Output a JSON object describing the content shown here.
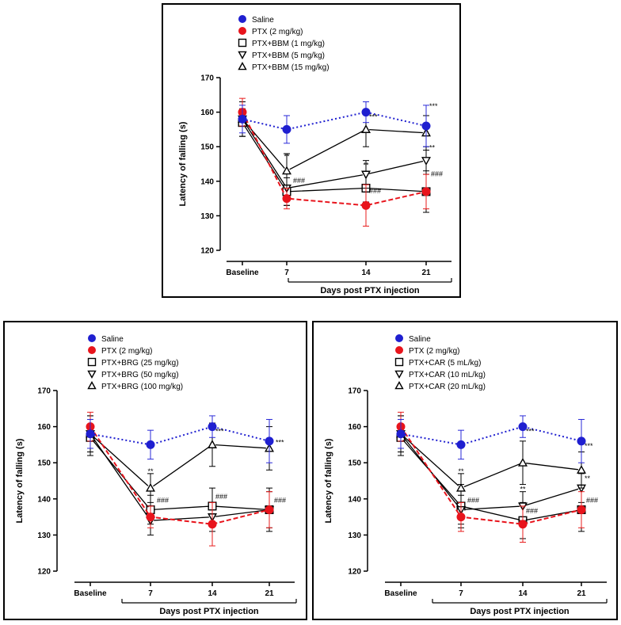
{
  "colors": {
    "saline": "#1f1fd0",
    "ptx": "#e8141c",
    "drug": "#000000",
    "error_saline": "#2a2ad8",
    "error_ptx": "#e81c1c"
  },
  "chart_data": [
    {
      "type": "line",
      "categories": [
        "Baseline",
        "7",
        "14",
        "21"
      ],
      "ylabel": "Latency of falling (s)",
      "xgroup_label": "Days post PTX injection",
      "ylim": [
        120,
        170
      ],
      "yticks": [
        120,
        130,
        140,
        150,
        160,
        170
      ],
      "series": [
        {
          "name": "Saline",
          "style": "saline",
          "values": [
            158,
            155,
            160,
            156
          ],
          "errors": [
            4,
            4,
            3,
            6
          ]
        },
        {
          "name": "PTX (2 mg/kg)",
          "style": "ptx",
          "values": [
            160,
            135,
            133,
            137
          ],
          "errors": [
            4,
            3,
            6,
            5
          ]
        },
        {
          "name": "PTX+BBM (1 mg/kg)",
          "style": "square",
          "values": [
            157,
            137,
            138,
            137
          ],
          "errors": [
            4,
            4,
            4,
            6
          ]
        },
        {
          "name": "PTX+BBM (5 mg/kg)",
          "style": "tri-down",
          "values": [
            158,
            138,
            142,
            146
          ],
          "errors": [
            5,
            5,
            4,
            4
          ]
        },
        {
          "name": "PTX+BBM (15 mg/kg)",
          "style": "tri-up",
          "values": [
            158,
            143,
            155,
            154
          ],
          "errors": [
            5,
            5,
            5,
            5
          ]
        }
      ],
      "annotations": [
        {
          "category": "7",
          "y": 146.5,
          "text": "**"
        },
        {
          "category": "7",
          "y": 139.5,
          "text": "###",
          "dx": 8
        },
        {
          "category": "14",
          "y": 158,
          "text": "***",
          "dx": 4
        },
        {
          "category": "14",
          "y": 144,
          "text": "**"
        },
        {
          "category": "14",
          "y": 136.5,
          "text": "###",
          "dx": 4
        },
        {
          "category": "21",
          "y": 161,
          "text": "***",
          "dx": 4
        },
        {
          "category": "21",
          "y": 149,
          "text": "**",
          "dx": 4
        },
        {
          "category": "21",
          "y": 141.5,
          "text": "###",
          "dx": 6
        }
      ]
    },
    {
      "type": "line",
      "categories": [
        "Baseline",
        "7",
        "14",
        "21"
      ],
      "ylabel": "Latency of falling (s)",
      "xgroup_label": "Days post PTX injection",
      "ylim": [
        120,
        170
      ],
      "yticks": [
        120,
        130,
        140,
        150,
        160,
        170
      ],
      "series": [
        {
          "name": "Saline",
          "style": "saline",
          "values": [
            158,
            155,
            160,
            156
          ],
          "errors": [
            4,
            4,
            3,
            6
          ]
        },
        {
          "name": "PTX (2 mg/kg)",
          "style": "ptx",
          "values": [
            160,
            135,
            133,
            137
          ],
          "errors": [
            4,
            3,
            6,
            5
          ]
        },
        {
          "name": "PTX+BRG (25 mg/kg)",
          "style": "square",
          "values": [
            157,
            137,
            138,
            137
          ],
          "errors": [
            5,
            4,
            5,
            6
          ]
        },
        {
          "name": "PTX+BRG (50 mg/kg)",
          "style": "tri-down",
          "values": [
            158,
            134,
            135,
            137
          ],
          "errors": [
            5,
            4,
            4,
            5
          ]
        },
        {
          "name": "PTX+BRG (100 mg/kg)",
          "style": "tri-up",
          "values": [
            158,
            143,
            155,
            154
          ],
          "errors": [
            5,
            4,
            6,
            6
          ]
        }
      ],
      "annotations": [
        {
          "category": "7",
          "y": 147,
          "text": "**"
        },
        {
          "category": "7",
          "y": 139,
          "text": "###",
          "dx": 8
        },
        {
          "category": "14",
          "y": 158,
          "text": "***",
          "dx": 4
        },
        {
          "category": "14",
          "y": 140,
          "text": "###",
          "dx": 4
        },
        {
          "category": "21",
          "y": 155,
          "text": "***",
          "dx": 8
        },
        {
          "category": "21",
          "y": 139,
          "text": "###",
          "dx": 6
        }
      ]
    },
    {
      "type": "line",
      "categories": [
        "Baseline",
        "7",
        "14",
        "21"
      ],
      "ylabel": "Latency of falling (s)",
      "xgroup_label": "Days post PTX injection",
      "ylim": [
        120,
        170
      ],
      "yticks": [
        120,
        130,
        140,
        150,
        160,
        170
      ],
      "series": [
        {
          "name": "Saline",
          "style": "saline",
          "values": [
            158,
            155,
            160,
            156
          ],
          "errors": [
            4,
            4,
            3,
            6
          ]
        },
        {
          "name": "PTX (2 mg/kg)",
          "style": "ptx",
          "values": [
            160,
            135,
            133,
            137
          ],
          "errors": [
            4,
            4,
            5,
            5
          ]
        },
        {
          "name": "PTX+CAR (5 mL/kg)",
          "style": "square",
          "values": [
            157,
            138,
            134,
            137
          ],
          "errors": [
            5,
            6,
            5,
            6
          ]
        },
        {
          "name": "PTX+CAR (10 mL/kg)",
          "style": "tri-down",
          "values": [
            158,
            137,
            138,
            143
          ],
          "errors": [
            5,
            4,
            4,
            4
          ]
        },
        {
          "name": "PTX+CAR (20 mL/kg)",
          "style": "tri-up",
          "values": [
            158,
            143,
            150,
            148
          ],
          "errors": [
            5,
            4,
            6,
            5
          ]
        }
      ],
      "annotations": [
        {
          "category": "7",
          "y": 147,
          "text": "**"
        },
        {
          "category": "7",
          "y": 139,
          "text": "###",
          "dx": 8
        },
        {
          "category": "14",
          "y": 158,
          "text": "***",
          "dx": 4
        },
        {
          "category": "14",
          "y": 142,
          "text": "**"
        },
        {
          "category": "14",
          "y": 136,
          "text": "###",
          "dx": 4
        },
        {
          "category": "21",
          "y": 154,
          "text": "***",
          "dx": 4
        },
        {
          "category": "21",
          "y": 145,
          "text": "**",
          "dx": 4
        },
        {
          "category": "21",
          "y": 139,
          "text": "###",
          "dx": 6
        }
      ]
    }
  ]
}
